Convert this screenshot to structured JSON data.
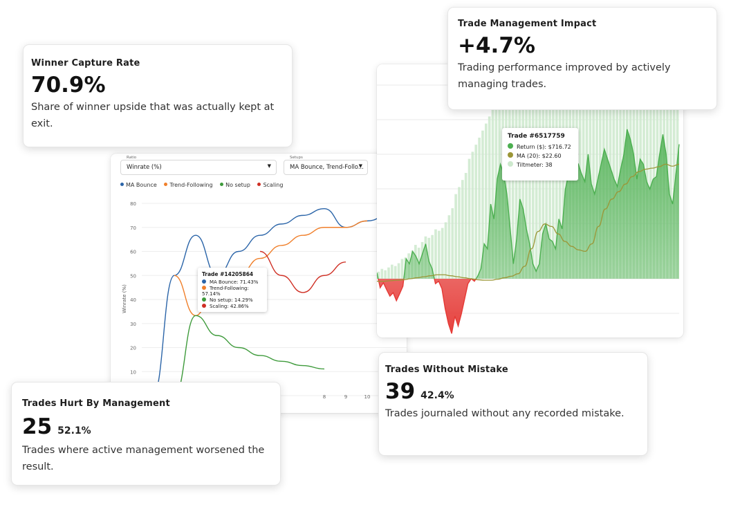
{
  "cards": {
    "capture": {
      "title": "Winner Capture Rate",
      "value": "70.9%",
      "desc": "Share of winner upside that was actually kept at exit."
    },
    "impact": {
      "title": "Trade Management Impact",
      "value": "+4.7%",
      "desc": "Trading performance improved by actively managing trades."
    },
    "without_mistake": {
      "title": "Trades Without Mistake",
      "value": "39",
      "sub": "42.4%",
      "desc": "Trades journaled without any recorded mistake."
    },
    "hurt": {
      "title": "Trades Hurt By Management",
      "value": "25",
      "sub": "52.1%",
      "desc": "Trades where active management worsened the result."
    }
  },
  "left_panel": {
    "ratio_select": {
      "label": "Ratio",
      "value": "Winrate (%)"
    },
    "setups_select": {
      "label": "Setups",
      "value": "MA Bounce, Trend-Follo..."
    },
    "tooltip": {
      "title": "Trade #14205864",
      "rows": [
        {
          "text": "MA Bounce: 71.43%",
          "color": "#2a64a8"
        },
        {
          "text": "Trend-Following: 57.14%",
          "color": "#f07f2a"
        },
        {
          "text": "No setup: 14.29%",
          "color": "#3d9a3a"
        },
        {
          "text": "Scaling: 42.86%",
          "color": "#cf2f24"
        }
      ]
    }
  },
  "right_panel": {
    "tooltip": {
      "title": "Trade #6517759",
      "rows": [
        {
          "text": "Return ($): $716.72",
          "color": "#4caf50"
        },
        {
          "text": "MA (20): $22.60",
          "color": "#9b9637"
        },
        {
          "text": "Tiltmeter: 38",
          "color": "#cde9cd"
        }
      ]
    }
  },
  "chart_data": [
    {
      "type": "line",
      "ylabel": "Winrate (%)",
      "ylim": [
        0,
        80
      ],
      "yticks": [
        "0",
        "10",
        "20",
        "30",
        "40",
        "50",
        "60",
        "70",
        "80"
      ],
      "xticks_visible": [
        "8",
        "9",
        "10",
        "11",
        "1"
      ],
      "legend_placement": "top-left",
      "series": [
        {
          "name": "MA Bounce",
          "color": "#2a64a8",
          "x": [
            0,
            1,
            2,
            3,
            4,
            5,
            6,
            7,
            8,
            9,
            10,
            11,
            12
          ],
          "values": [
            0,
            50,
            66.7,
            50,
            60,
            66.7,
            71.4,
            75,
            77.8,
            70,
            72.7,
            75,
            76.9
          ]
        },
        {
          "name": "Trend-Following",
          "color": "#f07f2a",
          "x": [
            1,
            2,
            3,
            4,
            5,
            6,
            7,
            8,
            9,
            10
          ],
          "values": [
            50,
            33.3,
            50,
            50,
            57.1,
            62.5,
            66.7,
            70,
            70,
            72.7
          ]
        },
        {
          "name": "No setup",
          "color": "#3d9a3a",
          "x": [
            1,
            2,
            3,
            4,
            5,
            6,
            7,
            8
          ],
          "values": [
            0,
            33.3,
            25,
            20,
            16.7,
            14.3,
            12.5,
            11.1
          ]
        },
        {
          "name": "Scaling",
          "color": "#cf2f24",
          "x": [
            5,
            6,
            7,
            8,
            9
          ],
          "values": [
            60,
            50,
            42.9,
            50,
            55.6
          ]
        }
      ]
    },
    {
      "type": "area",
      "grid": true,
      "series": [
        {
          "name": "Return ($)",
          "color": "#4caf50",
          "values": [
            12,
            -18,
            -8,
            -22,
            -35,
            -28,
            -44,
            -30,
            -15,
            40,
            30,
            55,
            45,
            30,
            50,
            70,
            35,
            20,
            -10,
            -5,
            -20,
            -60,
            -90,
            -110,
            -75,
            -95,
            -70,
            -40,
            -10,
            0,
            -5,
            5,
            20,
            70,
            60,
            150,
            120,
            200,
            230,
            210,
            170,
            100,
            30,
            80,
            160,
            140,
            100,
            70,
            30,
            15,
            30,
            90,
            110,
            80,
            75,
            60,
            120,
            100,
            180,
            210,
            200,
            220,
            230,
            210,
            195,
            250,
            190,
            170,
            200,
            230,
            260,
            240,
            220,
            200,
            185,
            220,
            250,
            300,
            280,
            250,
            200,
            240,
            230,
            195,
            180,
            200,
            205,
            250,
            290,
            250,
            170,
            150,
            210,
            270
          ]
        },
        {
          "name": "MA (20)",
          "color": "#9b9637",
          "values": [
            -5,
            -5,
            -4,
            -3,
            -2,
            0,
            2,
            4,
            6,
            8,
            8,
            6,
            4,
            2,
            0,
            -2,
            -3,
            -3,
            -1,
            2,
            5,
            10,
            25,
            60,
            95,
            110,
            105,
            90,
            75,
            65,
            58,
            55,
            70,
            105,
            140,
            160,
            175,
            190,
            205,
            215,
            220,
            222,
            225,
            230,
            226,
            230
          ]
        },
        {
          "name": "Tiltmeter",
          "color": "#cde9cd",
          "values": [
            10,
            14,
            12,
            16,
            20,
            18,
            22,
            28,
            30,
            36,
            40,
            48,
            44,
            52,
            60,
            58,
            62,
            70,
            68,
            72,
            80,
            90,
            100,
            120,
            130,
            140,
            150,
            170,
            180,
            190,
            200,
            210,
            220,
            230,
            240,
            250,
            260,
            270,
            280,
            290,
            295,
            300,
            300,
            300,
            300,
            300,
            300,
            300,
            300,
            300,
            300,
            300,
            300,
            300,
            300,
            300,
            300,
            300,
            300,
            300,
            300,
            300,
            300,
            300,
            300,
            300,
            300,
            300,
            300,
            300,
            300,
            300,
            300,
            300,
            300,
            300,
            300,
            300,
            300,
            300,
            300,
            300,
            300,
            300,
            300,
            300,
            300,
            300,
            300,
            300
          ]
        }
      ]
    }
  ]
}
